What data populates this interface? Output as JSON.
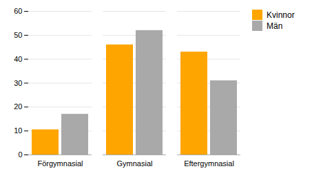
{
  "chart_data": {
    "type": "bar",
    "categories": [
      "Förgymnasial",
      "Gymnasial",
      "Eftergymnasial"
    ],
    "series": [
      {
        "name": "Kvinnor",
        "color": "#FFA500",
        "values": [
          10.5,
          46,
          43
        ]
      },
      {
        "name": "Män",
        "color": "#A9A9A9",
        "values": [
          17,
          52,
          31
        ]
      }
    ],
    "ylim": [
      0,
      60
    ],
    "yticks": [
      0,
      10,
      20,
      30,
      40,
      50,
      60
    ],
    "grid": true,
    "legend": "right"
  }
}
